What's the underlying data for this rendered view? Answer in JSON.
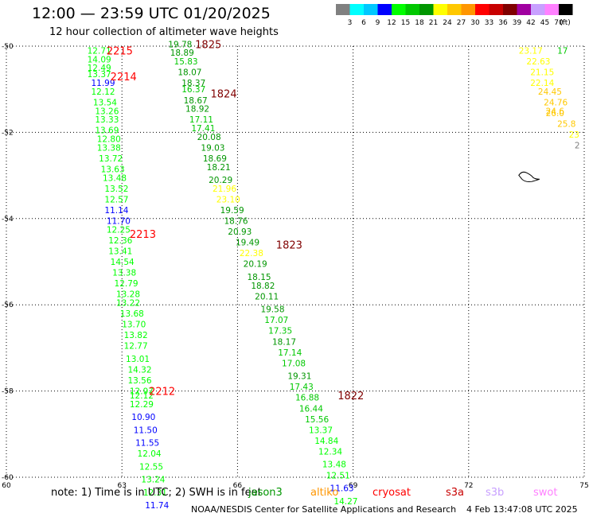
{
  "header": {
    "title": "12:00 — 23:59 UTC 01/20/2025",
    "subtitle": "12 hour collection of altimeter wave heights"
  },
  "color_scale": {
    "labels": [
      "3",
      "6",
      "9",
      "12",
      "15",
      "18",
      "21",
      "24",
      "27",
      "30",
      "33",
      "36",
      "39",
      "42",
      "45",
      "70"
    ],
    "unit": "(ft)",
    "colors": [
      "#808080",
      "#00ffff",
      "#00c8ff",
      "#0000ff",
      "#00ff00",
      "#00c800",
      "#009600",
      "#ffff00",
      "#ffc800",
      "#ff9600",
      "#ff0000",
      "#c80000",
      "#800000",
      "#a000a0",
      "#c8a0ff",
      "#ff80ff",
      "#000000"
    ]
  },
  "axes": {
    "x_ticks": [
      "60",
      "63",
      "66",
      "69",
      "72",
      "75"
    ],
    "y_ticks": [
      "-50",
      "-52",
      "-54",
      "-56",
      "-58",
      "-60"
    ]
  },
  "map_data": {
    "lon_range": [
      60,
      75
    ],
    "lat_range": [
      -60,
      -50
    ],
    "tracks": [
      {
        "lon": 62.1,
        "lat": -50.1,
        "v": "12.71"
      },
      {
        "lon": 62.1,
        "lat": -50.3,
        "v": "14.09"
      },
      {
        "lon": 62.1,
        "lat": -50.5,
        "v": "12.49"
      },
      {
        "lon": 62.1,
        "lat": -50.65,
        "v": "13.37"
      },
      {
        "lon": 62.2,
        "lat": -50.85,
        "v": "11.99"
      },
      {
        "lon": 62.2,
        "lat": -51.05,
        "v": "12.12"
      },
      {
        "lon": 62.25,
        "lat": -51.3,
        "v": "13.54"
      },
      {
        "lon": 62.3,
        "lat": -51.5,
        "v": "13.26"
      },
      {
        "lon": 62.3,
        "lat": -51.7,
        "v": "13.33"
      },
      {
        "lon": 62.3,
        "lat": -51.95,
        "v": "13.69"
      },
      {
        "lon": 62.35,
        "lat": -52.15,
        "v": "12.80"
      },
      {
        "lon": 62.35,
        "lat": -52.35,
        "v": "13.38"
      },
      {
        "lon": 62.4,
        "lat": -52.6,
        "v": "13.72"
      },
      {
        "lon": 62.45,
        "lat": -52.85,
        "v": "13.63"
      },
      {
        "lon": 62.5,
        "lat": -53.05,
        "v": "13.48"
      },
      {
        "lon": 62.55,
        "lat": -53.3,
        "v": "13.52"
      },
      {
        "lon": 62.55,
        "lat": -53.55,
        "v": "12.57"
      },
      {
        "lon": 62.55,
        "lat": -53.8,
        "v": "11.14"
      },
      {
        "lon": 62.6,
        "lat": -54.05,
        "v": "11.70"
      },
      {
        "lon": 62.6,
        "lat": -54.25,
        "v": "12.25"
      },
      {
        "lon": 62.65,
        "lat": -54.5,
        "v": "12.36"
      },
      {
        "lon": 62.65,
        "lat": -54.75,
        "v": "13.41"
      },
      {
        "lon": 62.7,
        "lat": -55.0,
        "v": "14.54"
      },
      {
        "lon": 62.75,
        "lat": -55.25,
        "v": "13.38"
      },
      {
        "lon": 62.8,
        "lat": -55.5,
        "v": "12.79"
      },
      {
        "lon": 62.85,
        "lat": -55.75,
        "v": "13.28"
      },
      {
        "lon": 62.85,
        "lat": -55.95,
        "v": "13.22"
      },
      {
        "lon": 62.95,
        "lat": -56.2,
        "v": "13.68"
      },
      {
        "lon": 63.0,
        "lat": -56.45,
        "v": "13.70"
      },
      {
        "lon": 63.05,
        "lat": -56.7,
        "v": "13.82"
      },
      {
        "lon": 63.05,
        "lat": -56.95,
        "v": "12.77"
      },
      {
        "lon": 63.1,
        "lat": -57.25,
        "v": "13.01"
      },
      {
        "lon": 63.15,
        "lat": -57.5,
        "v": "14.32"
      },
      {
        "lon": 63.15,
        "lat": -57.75,
        "v": "13.56"
      },
      {
        "lon": 63.2,
        "lat": -58.0,
        "v": "12.97"
      },
      {
        "lon": 63.2,
        "lat": -58.1,
        "v": "12.12"
      },
      {
        "lon": 63.2,
        "lat": -58.3,
        "v": "12.29"
      },
      {
        "lon": 63.25,
        "lat": -58.6,
        "v": "10.90"
      },
      {
        "lon": 63.3,
        "lat": -58.9,
        "v": "11.50"
      },
      {
        "lon": 63.35,
        "lat": -59.2,
        "v": "11.55"
      },
      {
        "lon": 63.4,
        "lat": -59.45,
        "v": "12.04"
      },
      {
        "lon": 63.45,
        "lat": -59.75,
        "v": "12.55"
      },
      {
        "lon": 63.5,
        "lat": -60.05,
        "v": "13.24"
      },
      {
        "lon": 63.55,
        "lat": -60.35,
        "v": "12.31"
      },
      {
        "lon": 63.6,
        "lat": -60.65,
        "v": "11.74"
      },
      {
        "lon": 64.2,
        "lat": -49.95,
        "v": "19.78"
      },
      {
        "lon": 64.25,
        "lat": -50.15,
        "v": "18.89"
      },
      {
        "lon": 64.35,
        "lat": -50.35,
        "v": "15.83"
      },
      {
        "lon": 64.45,
        "lat": -50.6,
        "v": "18.07"
      },
      {
        "lon": 64.55,
        "lat": -50.85,
        "v": "18.37"
      },
      {
        "lon": 64.55,
        "lat": -51.0,
        "v": "16.37"
      },
      {
        "lon": 64.6,
        "lat": -51.25,
        "v": "18.67"
      },
      {
        "lon": 64.65,
        "lat": -51.45,
        "v": "18.92"
      },
      {
        "lon": 64.75,
        "lat": -51.7,
        "v": "17.11"
      },
      {
        "lon": 64.8,
        "lat": -51.9,
        "v": "17.41"
      },
      {
        "lon": 64.95,
        "lat": -52.1,
        "v": "20.08"
      },
      {
        "lon": 65.05,
        "lat": -52.35,
        "v": "19.03"
      },
      {
        "lon": 65.1,
        "lat": -52.6,
        "v": "18.69"
      },
      {
        "lon": 65.2,
        "lat": -52.8,
        "v": "18.21"
      },
      {
        "lon": 65.25,
        "lat": -53.1,
        "v": "20.29"
      },
      {
        "lon": 65.35,
        "lat": -53.3,
        "v": "21.96"
      },
      {
        "lon": 65.45,
        "lat": -53.55,
        "v": "23.10"
      },
      {
        "lon": 65.55,
        "lat": -53.8,
        "v": "19.59"
      },
      {
        "lon": 65.65,
        "lat": -54.05,
        "v": "18.76"
      },
      {
        "lon": 65.75,
        "lat": -54.3,
        "v": "20.93"
      },
      {
        "lon": 65.95,
        "lat": -54.55,
        "v": "19.49"
      },
      {
        "lon": 66.05,
        "lat": -54.8,
        "v": "22.38"
      },
      {
        "lon": 66.15,
        "lat": -55.05,
        "v": "20.19"
      },
      {
        "lon": 66.25,
        "lat": -55.35,
        "v": "18.15"
      },
      {
        "lon": 66.35,
        "lat": -55.55,
        "v": "18.82"
      },
      {
        "lon": 66.45,
        "lat": -55.8,
        "v": "20.11"
      },
      {
        "lon": 66.6,
        "lat": -56.1,
        "v": "19.58"
      },
      {
        "lon": 66.7,
        "lat": -56.35,
        "v": "17.07"
      },
      {
        "lon": 66.8,
        "lat": -56.6,
        "v": "17.35"
      },
      {
        "lon": 66.9,
        "lat": -56.85,
        "v": "18.17"
      },
      {
        "lon": 67.05,
        "lat": -57.1,
        "v": "17.14"
      },
      {
        "lon": 67.15,
        "lat": -57.35,
        "v": "17.08"
      },
      {
        "lon": 67.3,
        "lat": -57.65,
        "v": "19.31"
      },
      {
        "lon": 67.35,
        "lat": -57.9,
        "v": "17.43"
      },
      {
        "lon": 67.5,
        "lat": -58.15,
        "v": "16.88"
      },
      {
        "lon": 67.6,
        "lat": -58.4,
        "v": "16.44"
      },
      {
        "lon": 67.75,
        "lat": -58.65,
        "v": "15.56"
      },
      {
        "lon": 67.85,
        "lat": -58.9,
        "v": "13.37"
      },
      {
        "lon": 68.0,
        "lat": -59.15,
        "v": "14.84"
      },
      {
        "lon": 68.1,
        "lat": -59.4,
        "v": "12.34"
      },
      {
        "lon": 68.2,
        "lat": -59.7,
        "v": "13.48"
      },
      {
        "lon": 68.3,
        "lat": -59.95,
        "v": "12.51"
      },
      {
        "lon": 68.4,
        "lat": -60.25,
        "v": "11.63"
      },
      {
        "lon": 68.5,
        "lat": -60.55,
        "v": "14.27"
      },
      {
        "lon": 73.3,
        "lat": -50.1,
        "v": "23.17"
      },
      {
        "lon": 74.3,
        "lat": -50.1,
        "v": "17"
      },
      {
        "lon": 73.5,
        "lat": -50.35,
        "v": "22.63"
      },
      {
        "lon": 73.6,
        "lat": -50.6,
        "v": "21.15"
      },
      {
        "lon": 73.6,
        "lat": -50.85,
        "v": "22.14"
      },
      {
        "lon": 73.8,
        "lat": -51.05,
        "v": "24.45"
      },
      {
        "lon": 73.95,
        "lat": -51.3,
        "v": "24.76"
      },
      {
        "lon": 74.0,
        "lat": -51.5,
        "v": "24.6"
      },
      {
        "lon": 74.0,
        "lat": -51.55,
        "v": "26.0"
      },
      {
        "lon": 74.3,
        "lat": -51.8,
        "v": "25.8"
      },
      {
        "lon": 74.6,
        "lat": -52.05,
        "v": "23"
      },
      {
        "lon": 74.75,
        "lat": -52.3,
        "v": "2"
      }
    ],
    "pass_labels": [
      {
        "text": "2215",
        "lon": 62.6,
        "lat": -50.1,
        "color": "#ff0000"
      },
      {
        "text": "2214",
        "lon": 62.7,
        "lat": -50.7,
        "color": "#ff0000"
      },
      {
        "text": "2213",
        "lon": 63.2,
        "lat": -54.35,
        "color": "#ff0000"
      },
      {
        "text": "2212",
        "lon": 63.7,
        "lat": -58.0,
        "color": "#ff0000"
      },
      {
        "text": "1825",
        "lon": 64.9,
        "lat": -49.95,
        "color": "#800000"
      },
      {
        "text": "1824",
        "lon": 65.3,
        "lat": -51.1,
        "color": "#800000"
      },
      {
        "text": "1823",
        "lon": 67.0,
        "lat": -54.6,
        "color": "#800000"
      },
      {
        "text": "1822",
        "lon": 68.6,
        "lat": -58.1,
        "color": "#800000"
      }
    ],
    "island": {
      "lon": 73.55,
      "lat": -53.05
    }
  },
  "footer": {
    "note": "note:  1) Time is in UTC;  2) SWH is in feet",
    "satellites": [
      {
        "name": "jason3",
        "color": "#009600"
      },
      {
        "name": "altiko",
        "color": "#ff9600"
      },
      {
        "name": "cryosat",
        "color": "#ff0000"
      },
      {
        "name": "s3a",
        "color": "#c80000"
      },
      {
        "name": "s3b",
        "color": "#c8a0ff"
      },
      {
        "name": "swot",
        "color": "#ff80ff"
      }
    ],
    "credit": "NOAA/NESDIS Center for Satellite Applications and Research",
    "timestamp": "4 Feb 13:47:08 UTC 2025"
  }
}
